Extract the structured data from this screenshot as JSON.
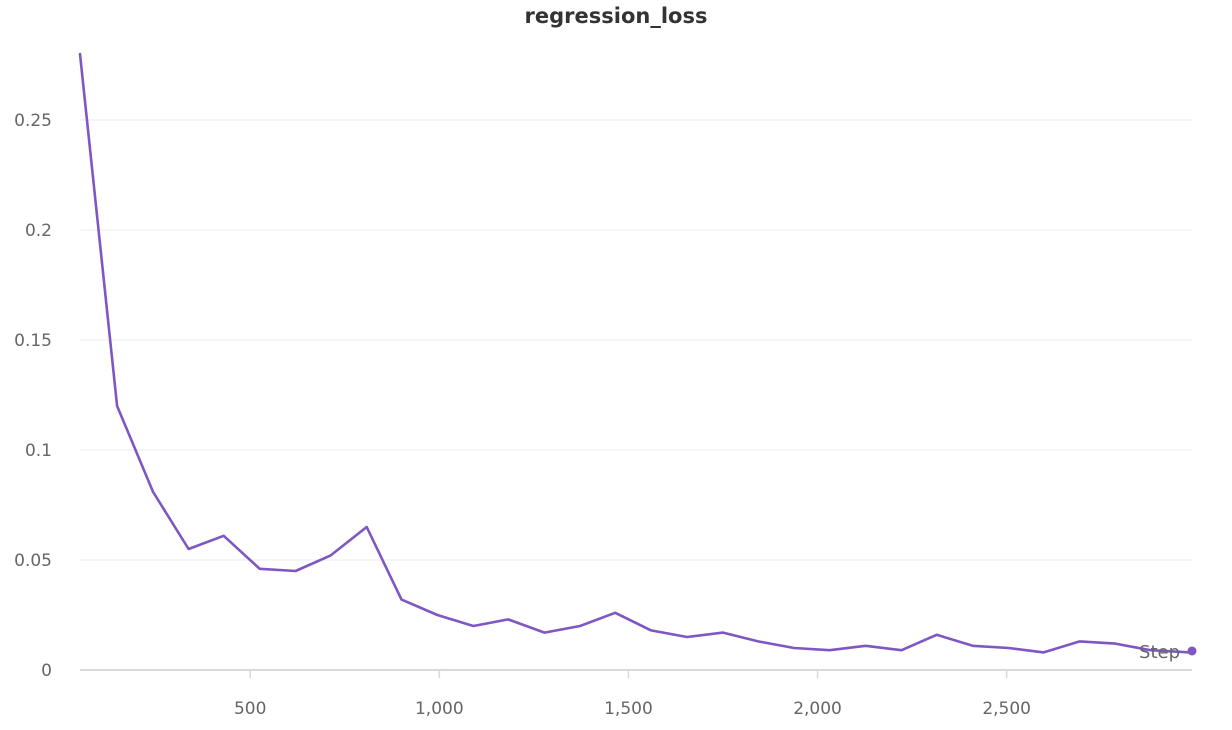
{
  "chart_data": {
    "type": "line",
    "title": "regression_loss",
    "xlabel": "Step",
    "ylabel": "",
    "xlim": [
      50,
      2990
    ],
    "ylim": [
      0,
      0.28
    ],
    "grid": true,
    "x_ticks": [
      {
        "value": 500,
        "label": "500"
      },
      {
        "value": 1000,
        "label": "1,000"
      },
      {
        "value": 1500,
        "label": "1,500"
      },
      {
        "value": 2000,
        "label": "2,000"
      },
      {
        "value": 2500,
        "label": "2,500"
      }
    ],
    "y_ticks": [
      {
        "value": 0,
        "label": "0"
      },
      {
        "value": 0.05,
        "label": "0.05"
      },
      {
        "value": 0.1,
        "label": "0.1"
      },
      {
        "value": 0.15,
        "label": "0.15"
      },
      {
        "value": 0.2,
        "label": "0.2"
      },
      {
        "value": 0.25,
        "label": "0.25"
      }
    ],
    "series": [
      {
        "color": "#7e57c2",
        "x": [
          50,
          148,
          243,
          337,
          430,
          525,
          620,
          712,
          808,
          900,
          995,
          1090,
          1182,
          1278,
          1372,
          1465,
          1560,
          1655,
          1750,
          1843,
          1938,
          2032,
          2127,
          2222,
          2315,
          2410,
          2505,
          2598,
          2693,
          2787,
          2880,
          2985
        ],
        "y": [
          0.28,
          0.12,
          0.081,
          0.055,
          0.061,
          0.046,
          0.045,
          0.052,
          0.065,
          0.032,
          0.025,
          0.02,
          0.023,
          0.017,
          0.02,
          0.026,
          0.018,
          0.015,
          0.017,
          0.013,
          0.01,
          0.009,
          0.011,
          0.009,
          0.016,
          0.011,
          0.01,
          0.008,
          0.013,
          0.012,
          0.009,
          0.008
        ]
      }
    ]
  }
}
